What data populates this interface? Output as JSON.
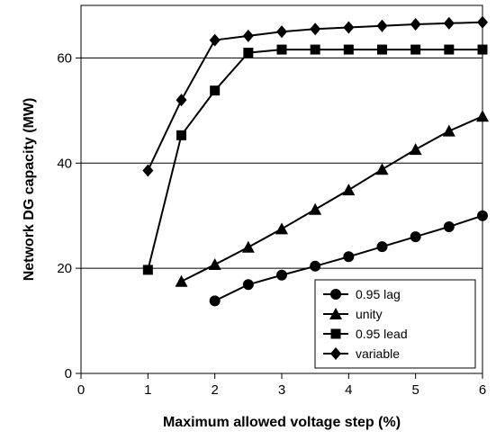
{
  "chart_data": {
    "type": "line",
    "title": "",
    "xlabel": "Maximum allowed voltage step (%)",
    "ylabel": "Network DG capacity (MW)",
    "xlim": [
      0,
      6
    ],
    "ylim": [
      0,
      70
    ],
    "x_ticks": [
      0,
      1,
      2,
      3,
      4,
      5,
      6
    ],
    "y_ticks": [
      0,
      20,
      40,
      60
    ],
    "grid": "horizontal",
    "legend_position": "bottom-right",
    "series": [
      {
        "name": "0.95 lag",
        "marker": "circle",
        "x": [
          2,
          2.5,
          3,
          3.5,
          4,
          4.5,
          5,
          5.5,
          6
        ],
        "y": [
          13.8,
          16.9,
          18.7,
          20.4,
          22.2,
          24.1,
          26.0,
          27.9,
          30.0
        ]
      },
      {
        "name": "unity",
        "marker": "triangle",
        "x": [
          1.5,
          2,
          2.5,
          3,
          3.5,
          4,
          4.5,
          5,
          5.5,
          6
        ],
        "y": [
          17.5,
          20.7,
          24.0,
          27.5,
          31.2,
          34.9,
          38.8,
          42.6,
          46.1,
          48.9
        ]
      },
      {
        "name": "0.95 lead",
        "marker": "square",
        "x": [
          1,
          1.5,
          2,
          2.5,
          3,
          3.5,
          4,
          4.5,
          5,
          5.5,
          6
        ],
        "y": [
          19.7,
          45.3,
          53.8,
          61.0,
          61.6,
          61.6,
          61.6,
          61.6,
          61.6,
          61.6,
          61.6
        ]
      },
      {
        "name": "variable",
        "marker": "diamond",
        "x": [
          1,
          1.5,
          2,
          2.5,
          3,
          3.5,
          4,
          4.5,
          5,
          5.5,
          6
        ],
        "y": [
          38.6,
          52.0,
          63.4,
          64.2,
          65.0,
          65.5,
          65.8,
          66.1,
          66.4,
          66.6,
          66.8
        ]
      }
    ]
  }
}
